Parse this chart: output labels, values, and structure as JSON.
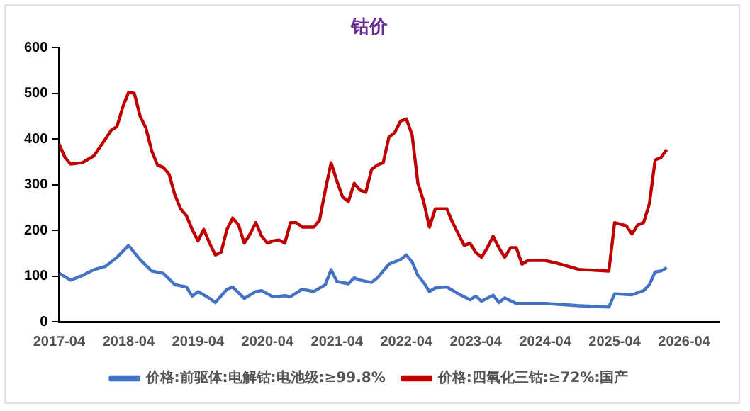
{
  "chart_data": {
    "type": "line",
    "title": "钴价",
    "xlim": [
      "2017-04",
      "2026-10"
    ],
    "xticks": [
      "2017-04",
      "2018-04",
      "2019-04",
      "2020-04",
      "2021-04",
      "2022-04",
      "2023-04",
      "2024-04",
      "2025-04",
      "2026-04"
    ],
    "ylim": [
      0,
      600
    ],
    "yticks": [
      0,
      100,
      200,
      300,
      400,
      500,
      600
    ],
    "grid": false,
    "legend": "bottom",
    "marker": "none",
    "line_style": "solid",
    "series": [
      {
        "name": "价格:前驱体:电解钴:电池级:≥99.8%",
        "color": "#4472c4",
        "x": [
          "2017-04",
          "2017-06",
          "2017-08",
          "2017-10",
          "2017-12",
          "2018-02",
          "2018-04",
          "2018-06",
          "2018-08",
          "2018-10",
          "2018-12",
          "2019-02",
          "2019-03",
          "2019-04",
          "2019-06",
          "2019-07",
          "2019-09",
          "2019-10",
          "2019-12",
          "2020-02",
          "2020-03",
          "2020-05",
          "2020-07",
          "2020-08",
          "2020-10",
          "2020-12",
          "2021-02",
          "2021-03",
          "2021-04",
          "2021-06",
          "2021-07",
          "2021-08",
          "2021-10",
          "2021-11",
          "2022-01",
          "2022-03",
          "2022-04",
          "2022-05",
          "2022-06",
          "2022-07",
          "2022-08",
          "2022-09",
          "2022-11",
          "2023-01",
          "2023-03",
          "2023-04",
          "2023-05",
          "2023-07",
          "2023-08",
          "2023-09",
          "2023-11",
          "2024-04",
          "2024-10",
          "2025-03",
          "2025-04",
          "2025-07",
          "2025-09",
          "2025-10",
          "2025-11",
          "2025-12",
          "2026-01"
        ],
        "values": [
          106,
          91,
          101,
          114,
          121,
          141,
          167,
          136,
          111,
          106,
          81,
          76,
          56,
          66,
          51,
          42,
          71,
          76,
          51,
          66,
          68,
          54,
          57,
          55,
          71,
          66,
          81,
          114,
          88,
          83,
          96,
          91,
          86,
          96,
          126,
          136,
          146,
          131,
          101,
          86,
          66,
          74,
          76,
          61,
          48,
          56,
          45,
          58,
          42,
          52,
          40,
          40,
          35,
          32,
          61,
          59,
          68,
          81,
          109,
          111,
          118
        ]
      },
      {
        "name": "价格:四氧化三钴:≥72%:国产",
        "color": "#c00000",
        "x": [
          "2017-04",
          "2017-05",
          "2017-06",
          "2017-08",
          "2017-10",
          "2017-12",
          "2018-01",
          "2018-02",
          "2018-03",
          "2018-04",
          "2018-05",
          "2018-06",
          "2018-07",
          "2018-08",
          "2018-09",
          "2018-10",
          "2018-11",
          "2018-12",
          "2019-01",
          "2019-02",
          "2019-03",
          "2019-04",
          "2019-05",
          "2019-06",
          "2019-07",
          "2019-08",
          "2019-09",
          "2019-10",
          "2019-11",
          "2019-12",
          "2020-01",
          "2020-02",
          "2020-03",
          "2020-04",
          "2020-05",
          "2020-06",
          "2020-07",
          "2020-08",
          "2020-09",
          "2020-10",
          "2020-11",
          "2020-12",
          "2021-01",
          "2021-02",
          "2021-03",
          "2021-04",
          "2021-05",
          "2021-06",
          "2021-07",
          "2021-08",
          "2021-09",
          "2021-10",
          "2021-11",
          "2021-12",
          "2022-01",
          "2022-02",
          "2022-03",
          "2022-04",
          "2022-05",
          "2022-06",
          "2022-07",
          "2022-08",
          "2022-09",
          "2022-10",
          "2022-11",
          "2022-12",
          "2023-01",
          "2023-02",
          "2023-03",
          "2023-04",
          "2023-05",
          "2023-06",
          "2023-07",
          "2023-08",
          "2023-09",
          "2023-10",
          "2023-11",
          "2023-12",
          "2024-01",
          "2024-04",
          "2024-06",
          "2024-08",
          "2024-10",
          "2024-12",
          "2025-03",
          "2025-04",
          "2025-06",
          "2025-07",
          "2025-08",
          "2025-09",
          "2025-10",
          "2025-11",
          "2025-12",
          "2026-01"
        ],
        "values": [
          389,
          360,
          345,
          348,
          363,
          400,
          419,
          427,
          470,
          502,
          500,
          450,
          424,
          374,
          343,
          338,
          323,
          278,
          247,
          232,
          202,
          177,
          202,
          172,
          146,
          152,
          202,
          227,
          212,
          172,
          192,
          217,
          187,
          172,
          177,
          179,
          172,
          217,
          217,
          207,
          207,
          207,
          222,
          288,
          348,
          308,
          273,
          263,
          303,
          288,
          283,
          333,
          343,
          348,
          404,
          414,
          439,
          444,
          409,
          303,
          263,
          207,
          247,
          247,
          247,
          217,
          192,
          167,
          172,
          152,
          141,
          162,
          187,
          162,
          141,
          162,
          162,
          126,
          134,
          134,
          128,
          121,
          114,
          113,
          111,
          217,
          210,
          192,
          212,
          217,
          258,
          354,
          359,
          377
        ]
      }
    ]
  }
}
